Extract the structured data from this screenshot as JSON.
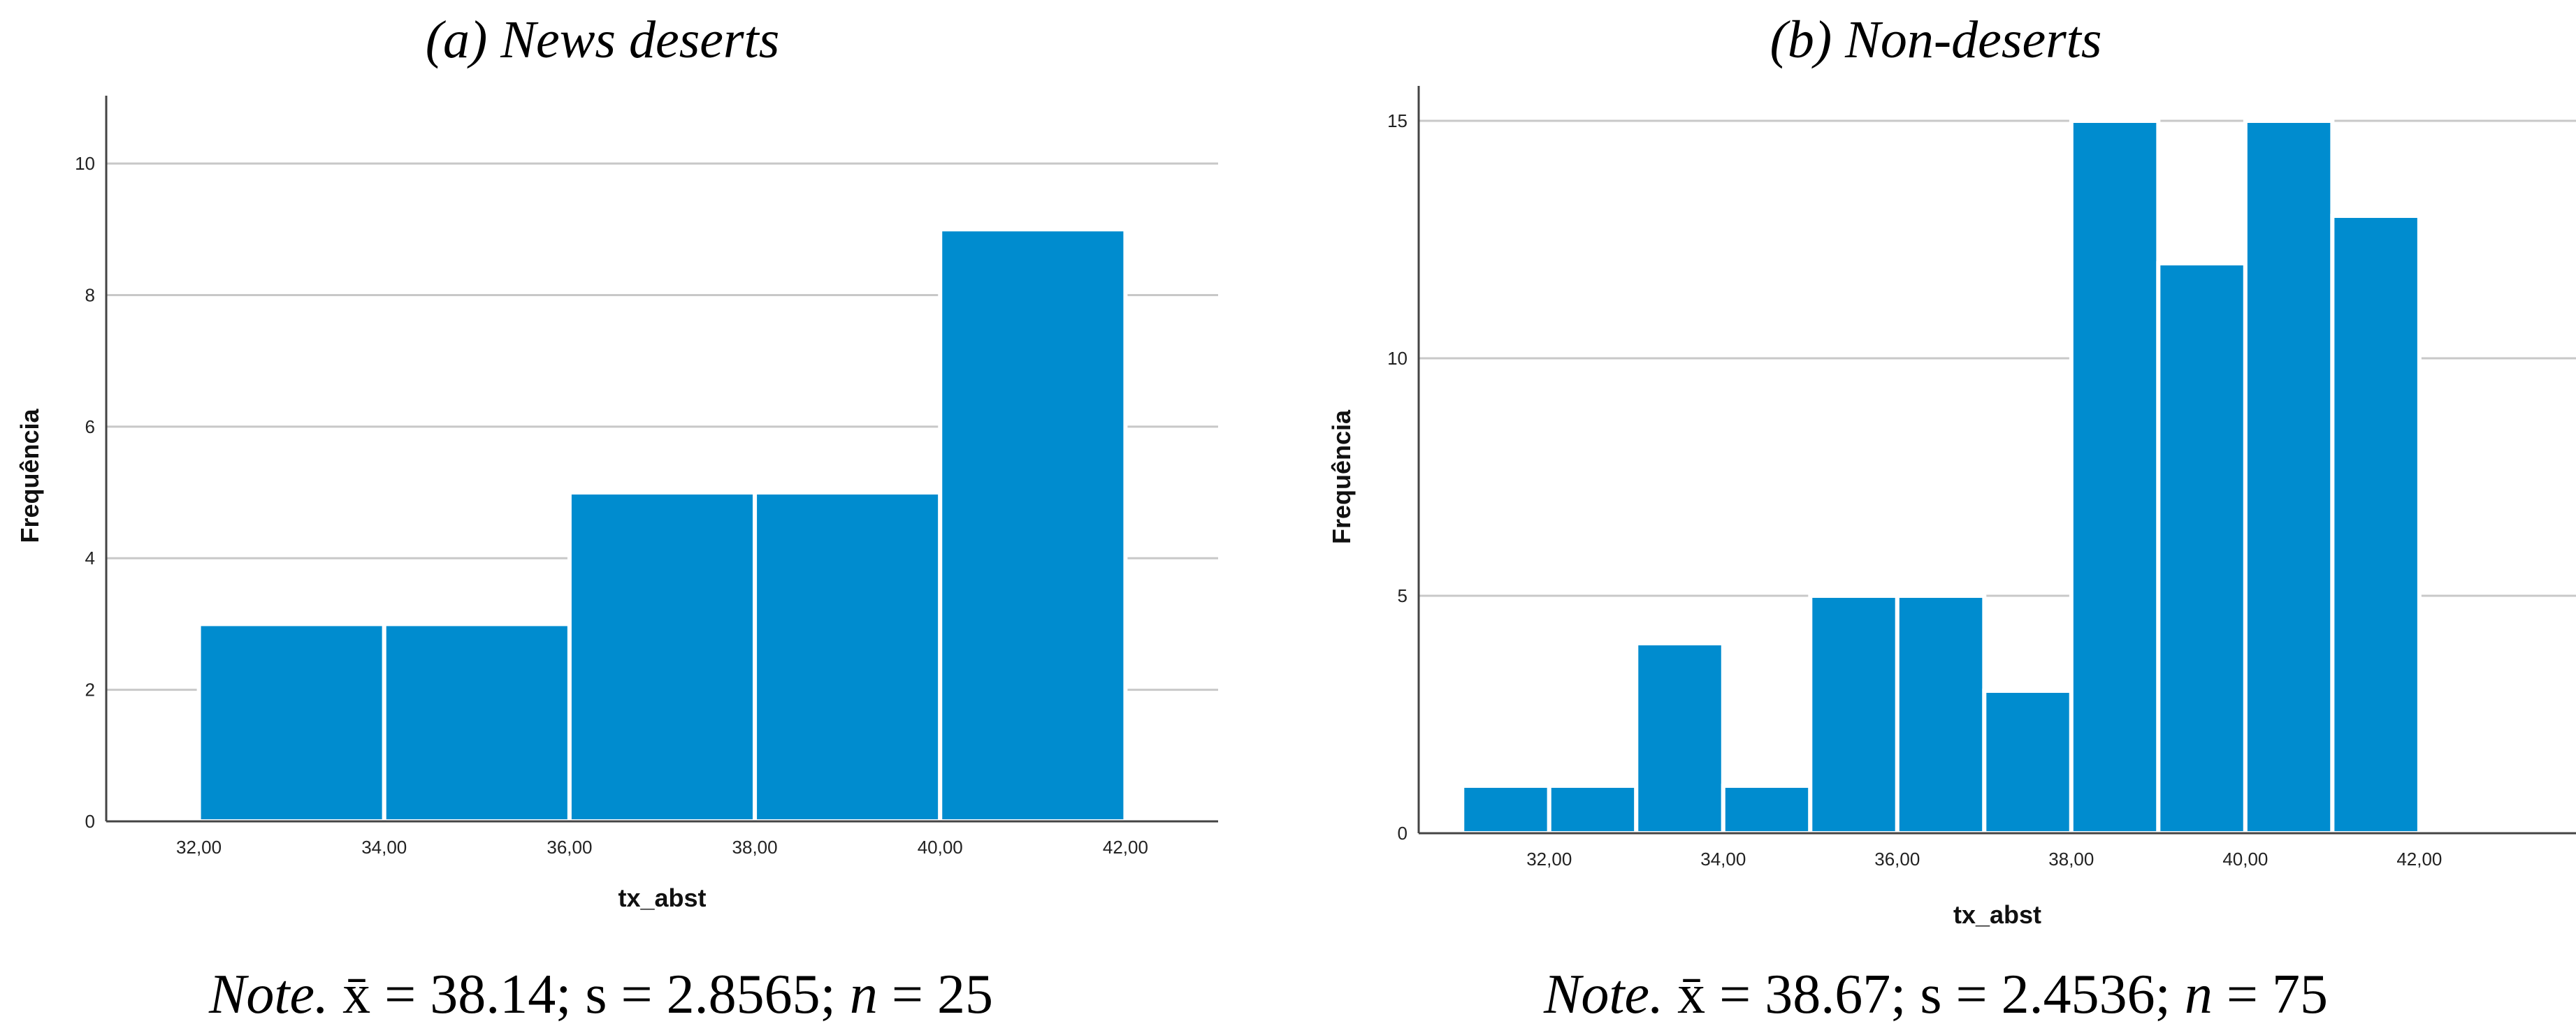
{
  "chart_data": [
    {
      "type": "bar",
      "title": "(a) News deserts",
      "xlabel": "tx_abst",
      "ylabel": "Frequência",
      "xlim": [
        31,
        43
      ],
      "ylim": [
        0,
        10.5
      ],
      "x_ticks": [
        "32,00",
        "34,00",
        "36,00",
        "38,00",
        "40,00",
        "42,00"
      ],
      "y_ticks": [
        "0",
        "2",
        "4",
        "6",
        "8",
        "10"
      ],
      "bars": [
        {
          "from": 32,
          "to": 34,
          "value": 3
        },
        {
          "from": 34,
          "to": 36,
          "value": 3
        },
        {
          "from": 36,
          "to": 38,
          "value": 5
        },
        {
          "from": 38,
          "to": 40,
          "value": 5
        },
        {
          "from": 40,
          "to": 42,
          "value": 9
        }
      ],
      "bar_color": "#008ccf",
      "grid": true,
      "note": {
        "label": "Note.",
        "mean": "38.14",
        "s": "2.8565",
        "n": "25"
      }
    },
    {
      "type": "bar",
      "title": "(b) Non-deserts",
      "xlabel": "tx_abst",
      "ylabel": "Frequência",
      "xlim": [
        30.5,
        43.8
      ],
      "ylim": [
        0,
        15
      ],
      "x_ticks": [
        "32,00",
        "34,00",
        "36,00",
        "38,00",
        "40,00",
        "42,00"
      ],
      "y_ticks": [
        "0",
        "5",
        "10",
        "15"
      ],
      "bars": [
        {
          "from": 31,
          "to": 32,
          "value": 1
        },
        {
          "from": 32,
          "to": 33,
          "value": 1
        },
        {
          "from": 33,
          "to": 34,
          "value": 4
        },
        {
          "from": 34,
          "to": 35,
          "value": 1
        },
        {
          "from": 35,
          "to": 36,
          "value": 5
        },
        {
          "from": 36,
          "to": 37,
          "value": 5
        },
        {
          "from": 37,
          "to": 38,
          "value": 3
        },
        {
          "from": 38,
          "to": 39,
          "value": 15
        },
        {
          "from": 39,
          "to": 40,
          "value": 12
        },
        {
          "from": 40,
          "to": 41,
          "value": 15
        },
        {
          "from": 41,
          "to": 42,
          "value": 13
        }
      ],
      "bar_color": "#008ccf",
      "grid": true,
      "note": {
        "label": "Note.",
        "mean": "38.67",
        "s": "2.4536",
        "n": "75"
      }
    }
  ]
}
